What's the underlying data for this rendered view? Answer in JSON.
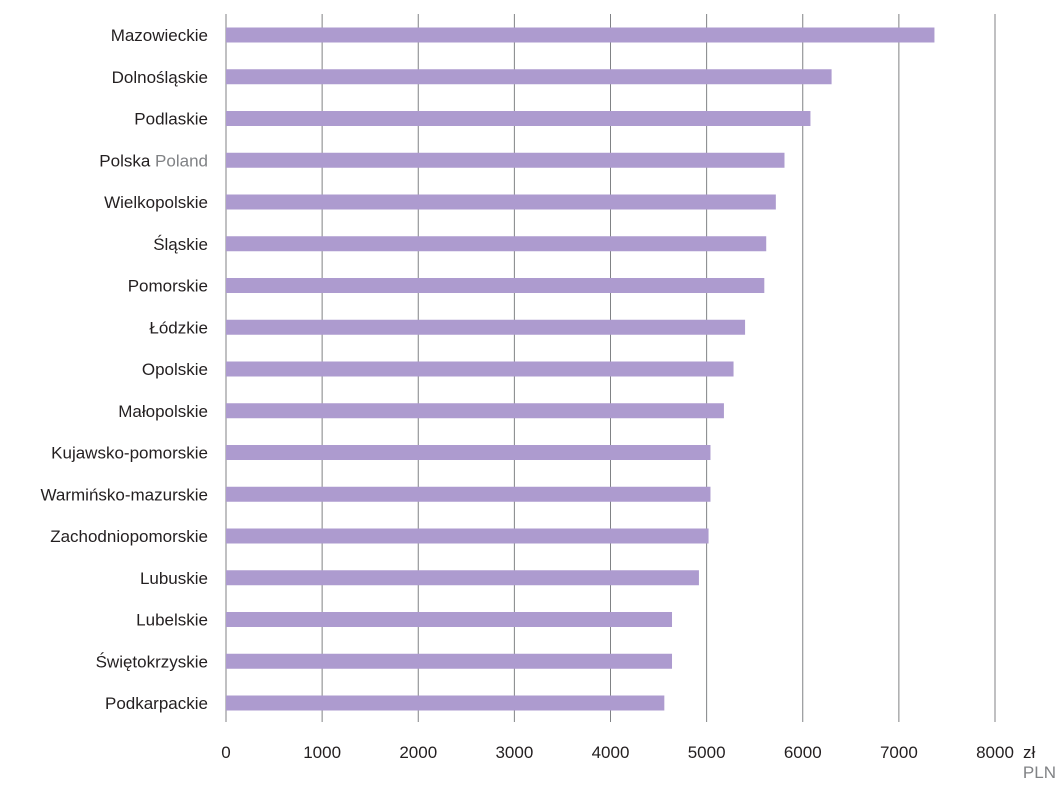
{
  "chart_data": {
    "type": "bar",
    "orientation": "horizontal",
    "categories": [
      {
        "label": "Mazowieckie",
        "label_en": ""
      },
      {
        "label": "Dolnośląskie",
        "label_en": ""
      },
      {
        "label": "Podlaskie",
        "label_en": ""
      },
      {
        "label": "Polska",
        "label_en": "Poland"
      },
      {
        "label": "Wielkopolskie",
        "label_en": ""
      },
      {
        "label": "Śląskie",
        "label_en": ""
      },
      {
        "label": "Pomorskie",
        "label_en": ""
      },
      {
        "label": "Łódzkie",
        "label_en": ""
      },
      {
        "label": "Opolskie",
        "label_en": ""
      },
      {
        "label": "Małopolskie",
        "label_en": ""
      },
      {
        "label": "Kujawsko-pomorskie",
        "label_en": ""
      },
      {
        "label": "Warmińsko-mazurskie",
        "label_en": ""
      },
      {
        "label": "Zachodniopomorskie",
        "label_en": ""
      },
      {
        "label": "Lubuskie",
        "label_en": ""
      },
      {
        "label": "Lubelskie",
        "label_en": ""
      },
      {
        "label": "Świętokrzyskie",
        "label_en": ""
      },
      {
        "label": "Podkarpackie",
        "label_en": ""
      }
    ],
    "values": [
      7370,
      6300,
      6080,
      5810,
      5720,
      5620,
      5600,
      5400,
      5280,
      5180,
      5040,
      5040,
      5020,
      4920,
      4640,
      4640,
      4560
    ],
    "xlim": [
      0,
      8000
    ],
    "xticks": [
      "0",
      "1000",
      "2000",
      "3000",
      "4000",
      "5000",
      "6000",
      "7000",
      "8000"
    ],
    "unit_label": "zł",
    "unit_label_en": "PLN",
    "grid": true,
    "bar_color": "#ad9bcf",
    "label_color": "#231f20",
    "label_en_color": "#808285",
    "gridline_color": "#808285"
  }
}
